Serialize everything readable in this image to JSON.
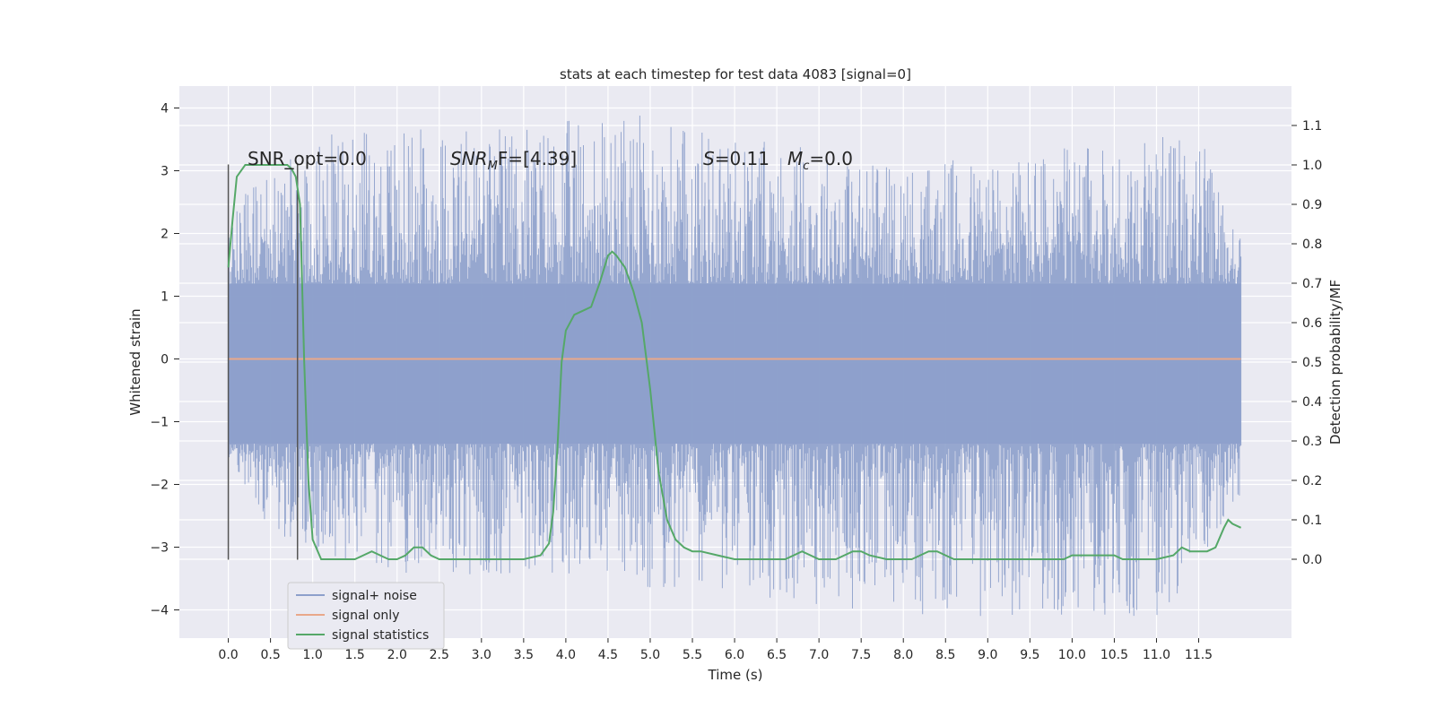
{
  "chart_data": {
    "type": "line",
    "title": "stats at each timestep for test data 4083 [signal=0]",
    "xlabel": "Time (s)",
    "ylabel": "Whitened strain",
    "y2label": "Detection probability/MF",
    "xlim": [
      -0.58,
      12.6
    ],
    "ylim": [
      -4.45,
      4.35
    ],
    "y2lim": [
      -0.2,
      1.2
    ],
    "xticks": [
      "0.0",
      "0.5",
      "1.0",
      "1.5",
      "2.0",
      "2.5",
      "3.0",
      "3.5",
      "4.0",
      "4.5",
      "5.0",
      "5.5",
      "6.0",
      "6.5",
      "7.0",
      "7.5",
      "8.0",
      "8.5",
      "9.0",
      "9.5",
      "10.0",
      "10.5",
      "11.0",
      "11.5"
    ],
    "yticks": [
      "4",
      "3",
      "2",
      "1",
      "0",
      "−1",
      "−2",
      "−3",
      "−4"
    ],
    "y2ticks": [
      "1.1",
      "1.0",
      "0.9",
      "0.8",
      "0.7",
      "0.6",
      "0.5",
      "0.4",
      "0.3",
      "0.2",
      "0.1",
      "0.0"
    ],
    "grid": true,
    "legend": "lower-left",
    "annotations": [
      {
        "plain": "SNR_opt=0.0"
      },
      {
        "italic": "SNR",
        "sub": "M",
        "plain": "F=[4.39]"
      },
      {
        "italic": "S",
        "plain": "=0.11"
      },
      {
        "italic": "M",
        "sub": "c",
        "plain": "=0.0"
      }
    ],
    "markers": [
      0.0,
      0.82
    ],
    "series": [
      {
        "name": "signal+ noise",
        "color": "#8da0cb",
        "axis": "left",
        "t_range": [
          0.0,
          12.0
        ],
        "envelope_upper": [
          [
            0.0,
            2.3
          ],
          [
            0.2,
            2.7
          ],
          [
            1.2,
            3.6
          ],
          [
            4.9,
            3.9
          ],
          [
            8.0,
            3.1
          ],
          [
            11.5,
            3.6
          ],
          [
            12.0,
            2.0
          ]
        ],
        "envelope_lower": [
          [
            0.0,
            -1.6
          ],
          [
            0.5,
            -2.8
          ],
          [
            2.0,
            -3.5
          ],
          [
            4.1,
            -3.5
          ],
          [
            7.9,
            -4.1
          ],
          [
            11.1,
            -4.1
          ],
          [
            12.0,
            -2.3
          ]
        ],
        "core_band": [
          -1.35,
          1.2
        ]
      },
      {
        "name": "signal only",
        "color": "#e9a88a",
        "axis": "left",
        "x": [
          0.0,
          12.0
        ],
        "y": [
          0.0,
          0.0
        ]
      },
      {
        "name": "signal statistics",
        "color": "#55a868",
        "axis": "right",
        "x": [
          0.0,
          0.05,
          0.1,
          0.2,
          0.35,
          0.5,
          0.6,
          0.7,
          0.75,
          0.8,
          0.85,
          0.9,
          0.95,
          1.0,
          1.1,
          1.3,
          1.5,
          1.6,
          1.7,
          1.8,
          1.9,
          2.0,
          2.1,
          2.2,
          2.3,
          2.4,
          2.5,
          2.7,
          2.9,
          3.1,
          3.3,
          3.5,
          3.7,
          3.8,
          3.85,
          3.9,
          3.95,
          4.0,
          4.05,
          4.1,
          4.2,
          4.3,
          4.4,
          4.5,
          4.55,
          4.6,
          4.7,
          4.8,
          4.9,
          5.0,
          5.1,
          5.2,
          5.3,
          5.4,
          5.5,
          5.6,
          5.8,
          6.0,
          6.2,
          6.4,
          6.6,
          6.7,
          6.8,
          6.9,
          7.0,
          7.1,
          7.2,
          7.3,
          7.4,
          7.5,
          7.6,
          7.8,
          8.0,
          8.1,
          8.2,
          8.3,
          8.4,
          8.5,
          8.6,
          8.8,
          9.0,
          9.2,
          9.4,
          9.6,
          9.8,
          9.9,
          10.0,
          10.1,
          10.3,
          10.5,
          10.6,
          10.8,
          11.0,
          11.2,
          11.3,
          11.4,
          11.5,
          11.6,
          11.7,
          11.8,
          11.85,
          11.9,
          12.0
        ],
        "y": [
          0.74,
          0.86,
          0.97,
          1.0,
          1.0,
          1.0,
          1.0,
          1.0,
          0.99,
          0.97,
          0.9,
          0.5,
          0.2,
          0.05,
          0.0,
          0.0,
          0.0,
          0.01,
          0.02,
          0.01,
          0.0,
          0.0,
          0.01,
          0.03,
          0.03,
          0.01,
          0.0,
          0.0,
          0.0,
          0.0,
          0.0,
          0.0,
          0.01,
          0.04,
          0.12,
          0.28,
          0.5,
          0.58,
          0.6,
          0.62,
          0.63,
          0.64,
          0.7,
          0.77,
          0.78,
          0.77,
          0.74,
          0.68,
          0.6,
          0.43,
          0.22,
          0.1,
          0.05,
          0.03,
          0.02,
          0.02,
          0.01,
          0.0,
          0.0,
          0.0,
          0.0,
          0.01,
          0.02,
          0.01,
          0.0,
          0.0,
          0.0,
          0.01,
          0.02,
          0.02,
          0.01,
          0.0,
          0.0,
          0.0,
          0.01,
          0.02,
          0.02,
          0.01,
          0.0,
          0.0,
          0.0,
          0.0,
          0.0,
          0.0,
          0.0,
          0.0,
          0.01,
          0.01,
          0.01,
          0.01,
          0.0,
          0.0,
          0.0,
          0.01,
          0.03,
          0.02,
          0.02,
          0.02,
          0.03,
          0.08,
          0.1,
          0.09,
          0.08
        ]
      }
    ]
  }
}
